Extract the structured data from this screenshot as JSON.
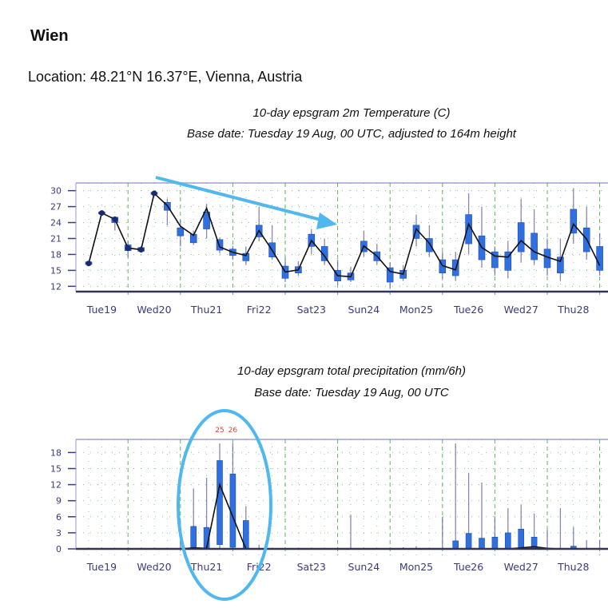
{
  "page": {
    "title": "Wien",
    "location": "Location: 48.21°N 16.37°E, Vienna, Austria"
  },
  "colors": {
    "box": "#2f6fe0",
    "whisker": "#6a6aa8",
    "axis": "#3a3a80",
    "weekend_label": "#e0413a",
    "grid": "#4caf50",
    "annotation": "#4fb8ee"
  },
  "annotations": {
    "arrow_on_temperature": true,
    "ellipse_on_precipitation_thu21": true
  },
  "chart_data": [
    {
      "type": "box",
      "title": "10-day epsgram 2m Temperature (C)",
      "subtitle": "Base date: Tuesday 19 Aug, 00 UTC, adjusted to 164m height",
      "ylim": [
        11,
        31
      ],
      "yticks": [
        12,
        15,
        18,
        21,
        24,
        27,
        30
      ],
      "day_labels": [
        "Tue19",
        "Wed20",
        "Thu21",
        "Fri22",
        "Sat23",
        "Sun24",
        "Mon25",
        "Tue26",
        "Wed27",
        "Thu28"
      ],
      "weekend_label": "Sun24",
      "grid": true,
      "times": [
        "19 Aug 06",
        "19 Aug 12",
        "19 Aug 18",
        "20 Aug 00",
        "20 Aug 06",
        "20 Aug 12",
        "20 Aug 18",
        "21 Aug 00",
        "21 Aug 06",
        "21 Aug 12",
        "21 Aug 18",
        "22 Aug 00",
        "22 Aug 06",
        "22 Aug 12",
        "22 Aug 18",
        "23 Aug 00",
        "23 Aug 06",
        "23 Aug 12",
        "23 Aug 18",
        "24 Aug 00",
        "24 Aug 06",
        "24 Aug 12",
        "24 Aug 18",
        "25 Aug 00",
        "25 Aug 06",
        "25 Aug 12",
        "25 Aug 18",
        "26 Aug 00",
        "26 Aug 06",
        "26 Aug 12",
        "26 Aug 18",
        "27 Aug 00",
        "27 Aug 06",
        "27 Aug 12",
        "27 Aug 18",
        "28 Aug 00",
        "28 Aug 06",
        "28 Aug 12",
        "28 Aug 18",
        "29 Aug 00"
      ],
      "line": [
        16.3,
        25.8,
        24.6,
        19.2,
        18.9,
        29.5,
        27.2,
        23.3,
        21.6,
        26.7,
        19.4,
        18.4,
        17.8,
        22.5,
        18.8,
        14.7,
        15.1,
        20.6,
        17.7,
        14.0,
        13.8,
        19.6,
        17.7,
        14.8,
        14.3,
        22.8,
        20.1,
        15.9,
        15.1,
        23.7,
        19.3,
        17.7,
        17.5,
        20.6,
        18.5,
        17.5,
        16.7,
        23.7,
        20.9,
        15.9
      ],
      "min": [
        16,
        25.5,
        22.5,
        17.5,
        18.3,
        29.2,
        23.5,
        19.5,
        19.8,
        21,
        18.2,
        17,
        16,
        20.5,
        17,
        12.8,
        14,
        18,
        16,
        12.3,
        12.8,
        17.5,
        16,
        11.5,
        13,
        19.5,
        17.5,
        13.5,
        13,
        18,
        15.5,
        14,
        13.5,
        16.5,
        16,
        14,
        13,
        20,
        17,
        14
      ],
      "p25": [
        16.1,
        25.6,
        24,
        18.7,
        18.6,
        29.3,
        26.3,
        21.5,
        20.2,
        22.8,
        18.8,
        17.8,
        16.8,
        21.3,
        17.5,
        13.5,
        14.5,
        19.5,
        16.8,
        13,
        13.2,
        18.5,
        16.8,
        12.8,
        13.5,
        21,
        18.5,
        14.5,
        14,
        20,
        17,
        15.5,
        15,
        18.5,
        17,
        15.5,
        14.5,
        22,
        18.5,
        15
      ],
      "p75": [
        16.6,
        26,
        25,
        19.8,
        19.3,
        29.7,
        27.8,
        23,
        21.8,
        26,
        20.8,
        19,
        18.2,
        23.5,
        20.2,
        15.8,
        15.7,
        21.8,
        19.5,
        15,
        14.5,
        20.5,
        18.5,
        15.5,
        15,
        23.5,
        21,
        17,
        17,
        25.5,
        21.5,
        18.5,
        18.5,
        24,
        22,
        19,
        17.5,
        26.5,
        23,
        19.5
      ],
      "max": [
        16.7,
        26.1,
        25.2,
        20.5,
        19.6,
        29.8,
        28.5,
        24.5,
        22.5,
        27.5,
        21.2,
        19.6,
        19.5,
        27,
        23.5,
        17.3,
        16.7,
        22.8,
        21,
        17,
        15.7,
        22.5,
        20,
        16.5,
        16,
        25.5,
        23.5,
        18.5,
        18.5,
        29.5,
        27,
        19.5,
        20.5,
        28.5,
        26.5,
        21,
        21,
        30.5,
        27,
        22
      ]
    },
    {
      "type": "box",
      "title": "10-day epsgram total precipitation (mm/6h)",
      "subtitle": "Base date: Tuesday 19 Aug, 00 UTC",
      "ylim": [
        0,
        19.7
      ],
      "yticks": [
        0,
        3,
        6,
        9,
        12,
        15,
        18
      ],
      "day_labels": [
        "Tue19",
        "Wed20",
        "Thu21",
        "Fri22",
        "Sat23",
        "Sun24",
        "Mon25",
        "Tue26",
        "Wed27",
        "Thu28"
      ],
      "weekend_label": "Sun24",
      "grid": true,
      "offscale_labels": [
        {
          "time": "21 Aug 18",
          "text": "25"
        },
        {
          "time": "22 Aug 00",
          "text": "26"
        }
      ],
      "line": [
        0,
        0,
        0,
        0,
        0,
        0,
        0,
        0,
        0.2,
        0.1,
        12,
        6,
        0,
        0,
        0,
        0,
        0,
        0,
        0,
        0,
        0,
        0,
        0,
        0,
        0,
        0,
        0,
        0,
        0,
        0,
        0,
        0,
        0,
        0.2,
        0.4,
        0.1,
        0,
        0,
        0,
        0
      ],
      "p25": [
        0,
        0,
        0,
        0,
        0,
        0,
        0,
        0,
        0,
        0,
        0.8,
        0.3,
        0,
        0,
        0,
        0,
        0,
        0,
        0,
        0,
        0,
        0,
        0,
        0,
        0,
        0,
        0,
        0,
        0,
        0,
        0,
        0,
        0,
        0,
        0,
        0,
        0,
        0,
        0,
        0
      ],
      "p75": [
        0,
        0,
        0,
        0,
        0,
        0,
        0,
        0,
        4.2,
        4,
        16.5,
        14,
        5.3,
        0,
        0,
        0,
        0,
        0,
        0,
        0,
        0,
        0,
        0,
        0,
        0,
        0,
        0,
        0,
        1.5,
        2.9,
        2,
        2.2,
        3,
        3.7,
        2.2,
        0,
        0,
        0.5,
        0,
        0
      ],
      "max": [
        0,
        0,
        0,
        0,
        0,
        0,
        0,
        5.2,
        11.3,
        13.3,
        25,
        26,
        8,
        0.8,
        0,
        0,
        0,
        0,
        0,
        0.3,
        6.4,
        0,
        0,
        0,
        0.3,
        0.5,
        0,
        6,
        20,
        14.2,
        12.4,
        6.1,
        7.6,
        8.2,
        6.6,
        3.6,
        7.6,
        4.1,
        1.6,
        1.7
      ]
    }
  ]
}
